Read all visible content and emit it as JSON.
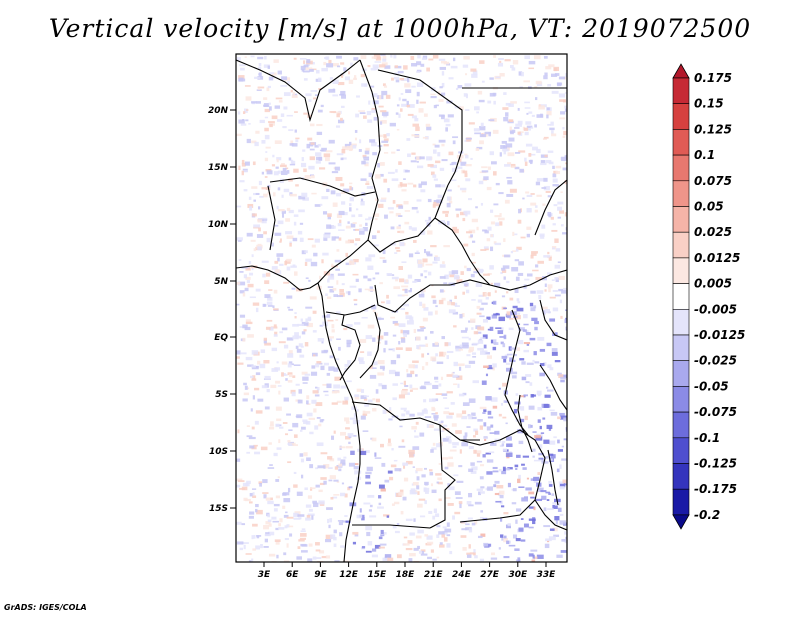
{
  "title": "Vertical velocity [m/s] at 1000hPa, VT: 2019072500",
  "footer": "GrADS: IGES/COLA",
  "lat_ticks": [
    "20N",
    "15N",
    "10N",
    "5N",
    "EQ",
    "5S",
    "10S",
    "15S"
  ],
  "lon_ticks": [
    "3E",
    "6E",
    "9E",
    "12E",
    "15E",
    "18E",
    "21E",
    "24E",
    "27E",
    "30E",
    "33E"
  ],
  "colorbar": {
    "levels": [
      "0.175",
      "0.15",
      "0.125",
      "0.1",
      "0.075",
      "0.05",
      "0.025",
      "0.0125",
      "0.005",
      "-0.005",
      "-0.0125",
      "-0.025",
      "-0.05",
      "-0.075",
      "-0.1",
      "-0.125",
      "-0.175",
      "-0.2"
    ],
    "colors": [
      "#b2182b",
      "#c62a35",
      "#d6413f",
      "#e05b55",
      "#e8786f",
      "#ef958a",
      "#f5b4a8",
      "#f9d0c6",
      "#fce8e2",
      "#ffffff",
      "#e4e4fb",
      "#c8c8f5",
      "#a9a9ee",
      "#8b8be6",
      "#6d6ddc",
      "#4f4fcf",
      "#3434bd",
      "#1a1aa6",
      "#0a0a8a"
    ]
  }
}
